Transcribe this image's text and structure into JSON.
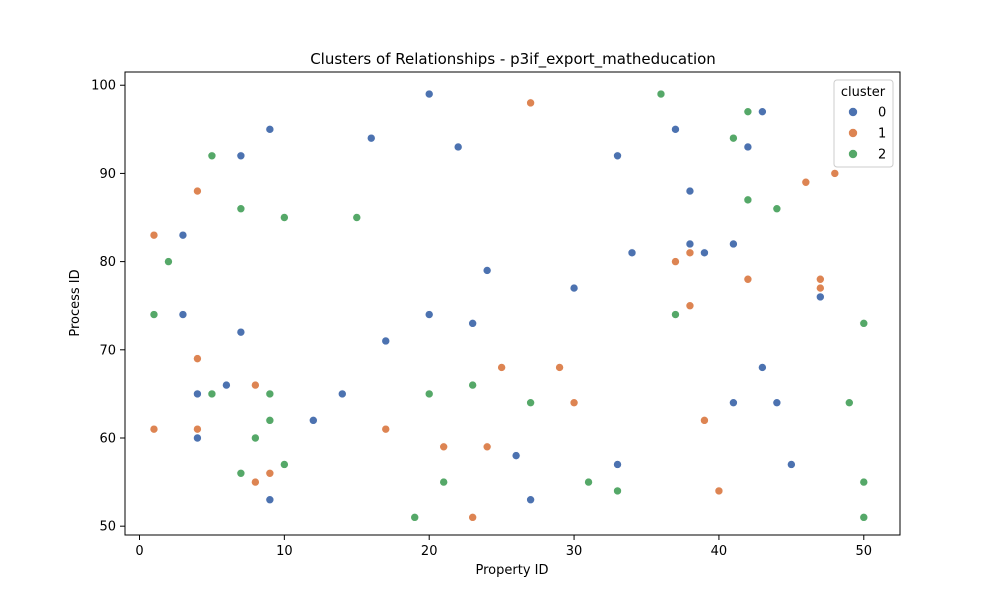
{
  "chart_data": {
    "type": "scatter",
    "title": "Clusters of Relationships - p3if_export_matheducation",
    "xlabel": "Property ID",
    "ylabel": "Process ID",
    "xlim": [
      -1,
      52.5
    ],
    "ylim": [
      49,
      101.5
    ],
    "xticks": [
      0,
      10,
      20,
      30,
      40,
      50
    ],
    "yticks": [
      50,
      60,
      70,
      80,
      90,
      100
    ],
    "grid": false,
    "legend": {
      "title": "cluster",
      "placement": "top-right"
    },
    "series": [
      {
        "name": "0",
        "color": "#4c72b0",
        "points": [
          [
            20,
            99
          ],
          [
            43,
            97
          ],
          [
            9,
            95
          ],
          [
            37,
            95
          ],
          [
            16,
            94
          ],
          [
            22,
            93
          ],
          [
            42,
            93
          ],
          [
            7,
            92
          ],
          [
            33,
            92
          ],
          [
            38,
            88
          ],
          [
            3,
            83
          ],
          [
            38,
            82
          ],
          [
            41,
            82
          ],
          [
            34,
            81
          ],
          [
            39,
            81
          ],
          [
            24,
            79
          ],
          [
            30,
            77
          ],
          [
            47,
            76
          ],
          [
            3,
            74
          ],
          [
            20,
            74
          ],
          [
            23,
            73
          ],
          [
            7,
            72
          ],
          [
            17,
            71
          ],
          [
            43,
            68
          ],
          [
            6,
            66
          ],
          [
            4,
            65
          ],
          [
            14,
            65
          ],
          [
            41,
            64
          ],
          [
            44,
            64
          ],
          [
            12,
            62
          ],
          [
            4,
            60
          ],
          [
            26,
            58
          ],
          [
            33,
            57
          ],
          [
            45,
            57
          ],
          [
            9,
            53
          ],
          [
            27,
            53
          ]
        ]
      },
      {
        "name": "1",
        "color": "#dd8452",
        "points": [
          [
            27,
            98
          ],
          [
            48,
            90
          ],
          [
            46,
            89
          ],
          [
            4,
            88
          ],
          [
            1,
            83
          ],
          [
            38,
            81
          ],
          [
            37,
            80
          ],
          [
            42,
            78
          ],
          [
            47,
            78
          ],
          [
            47,
            77
          ],
          [
            38,
            75
          ],
          [
            4,
            69
          ],
          [
            25,
            68
          ],
          [
            29,
            68
          ],
          [
            8,
            66
          ],
          [
            30,
            64
          ],
          [
            39,
            62
          ],
          [
            1,
            61
          ],
          [
            4,
            61
          ],
          [
            17,
            61
          ],
          [
            21,
            59
          ],
          [
            24,
            59
          ],
          [
            9,
            56
          ],
          [
            8,
            55
          ],
          [
            40,
            54
          ],
          [
            23,
            51
          ]
        ]
      },
      {
        "name": "2",
        "color": "#55a868",
        "points": [
          [
            36,
            99
          ],
          [
            42,
            97
          ],
          [
            41,
            94
          ],
          [
            5,
            92
          ],
          [
            42,
            87
          ],
          [
            7,
            86
          ],
          [
            44,
            86
          ],
          [
            10,
            85
          ],
          [
            15,
            85
          ],
          [
            2,
            80
          ],
          [
            1,
            74
          ],
          [
            37,
            74
          ],
          [
            50,
            73
          ],
          [
            23,
            66
          ],
          [
            5,
            65
          ],
          [
            9,
            65
          ],
          [
            20,
            65
          ],
          [
            27,
            64
          ],
          [
            49,
            64
          ],
          [
            9,
            62
          ],
          [
            8,
            60
          ],
          [
            10,
            57
          ],
          [
            7,
            56
          ],
          [
            21,
            55
          ],
          [
            31,
            55
          ],
          [
            50,
            55
          ],
          [
            33,
            54
          ],
          [
            19,
            51
          ],
          [
            50,
            51
          ]
        ]
      }
    ]
  }
}
